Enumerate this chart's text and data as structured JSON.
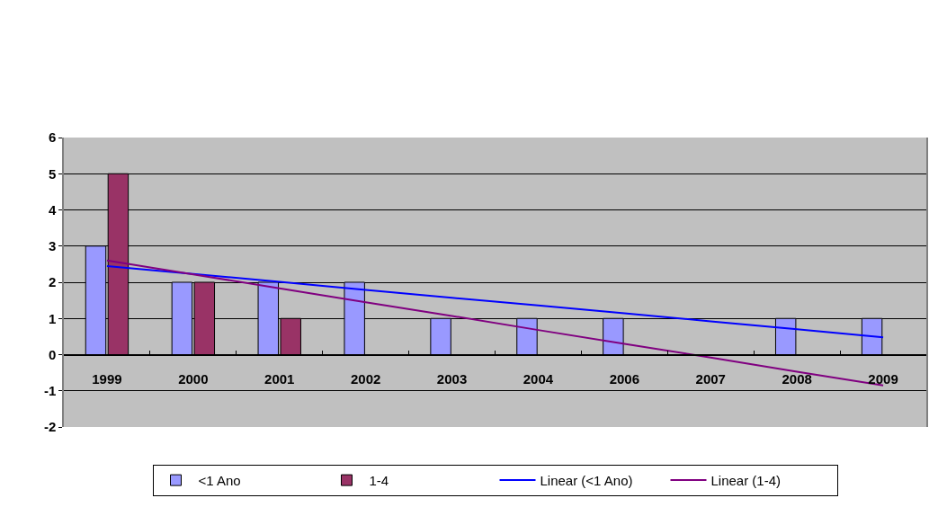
{
  "chart_data": {
    "type": "bar",
    "categories": [
      "1999",
      "2000",
      "2001",
      "2002",
      "2003",
      "2004",
      "2006",
      "2007",
      "2008",
      "2009"
    ],
    "series": [
      {
        "name": "<1 Ano",
        "color": "#9999ff",
        "values": [
          3,
          2,
          2,
          2,
          1,
          1,
          1,
          null,
          1,
          1
        ]
      },
      {
        "name": "1-4",
        "color": "#993366",
        "values": [
          5,
          2,
          1,
          null,
          null,
          null,
          null,
          null,
          null,
          null
        ]
      },
      {
        "name": "Linear (<1 Ano)",
        "type": "line",
        "color": "#0000ff",
        "values": [
          2.45,
          2.23,
          2.01,
          1.79,
          1.57,
          1.36,
          1.14,
          0.92,
          0.7,
          0.48
        ]
      },
      {
        "name": "Linear (1-4)",
        "type": "line",
        "color": "#800080",
        "values": [
          2.6,
          2.22,
          1.83,
          1.45,
          1.07,
          0.68,
          0.3,
          -0.08,
          -0.47,
          -0.85
        ]
      }
    ],
    "ylim": [
      -2,
      6
    ],
    "yticks": [
      -2,
      -1,
      0,
      1,
      2,
      3,
      4,
      5,
      6
    ],
    "grid": "y",
    "legend": "bottom",
    "marker": "none",
    "line_style": "solid"
  }
}
